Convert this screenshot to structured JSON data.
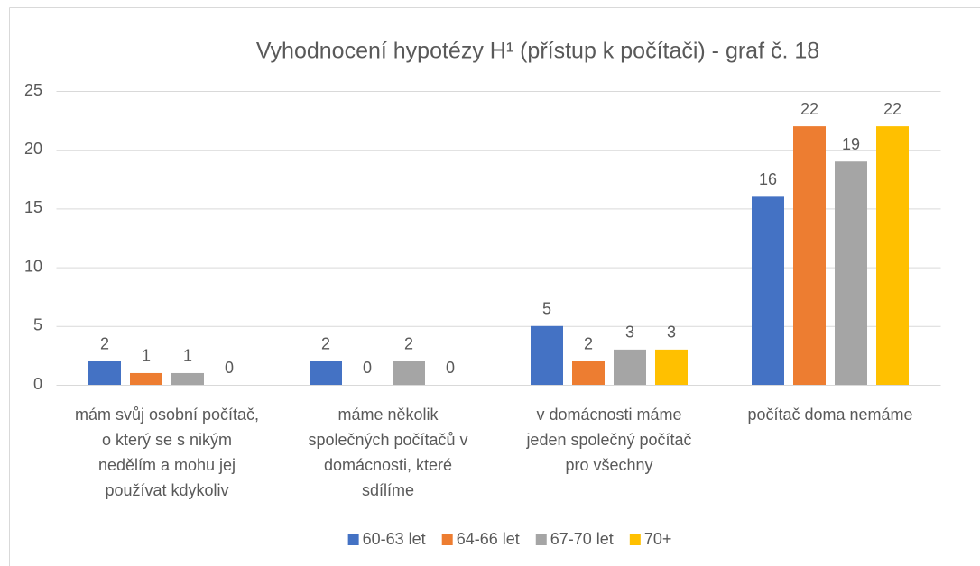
{
  "chart_data": {
    "type": "bar",
    "title": "Vyhodnocení hypotézy H¹ (přístup k počítači) - graf č. 18",
    "categories": [
      "mám svůj osobní počítač,\no který se s nikým\nnedělím a mohu jej\npoužívat kdykoliv",
      "máme několik\nspolečných počítačů v\ndomácnosti, které\nsdílíme",
      "v domácnosti máme\njeden společný počítač\npro všechny",
      "počítač doma nemáme"
    ],
    "series": [
      {
        "name": "60-63 let",
        "color": "#4472c4",
        "values": [
          2,
          2,
          5,
          16
        ]
      },
      {
        "name": "64-66 let",
        "color": "#ed7d31",
        "values": [
          1,
          0,
          2,
          22
        ]
      },
      {
        "name": "67-70 let",
        "color": "#a5a5a5",
        "values": [
          1,
          2,
          3,
          19
        ]
      },
      {
        "name": "70+",
        "color": "#ffc000",
        "values": [
          0,
          0,
          3,
          22
        ]
      }
    ],
    "ylim": [
      0,
      25
    ],
    "yticks": [
      0,
      5,
      10,
      15,
      20,
      25
    ],
    "grid": true,
    "legend": "bottom"
  }
}
